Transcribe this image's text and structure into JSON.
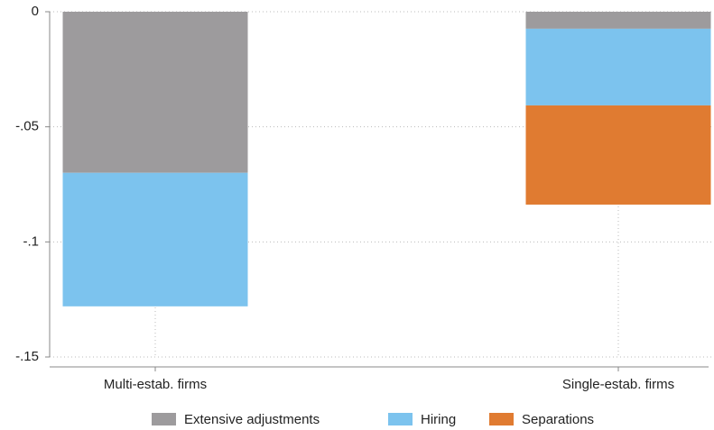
{
  "chart_data": {
    "type": "stacked_bar",
    "categories": [
      "Multi-estab. firms",
      "Single-estab. firms"
    ],
    "series": [
      {
        "name": "Extensive adjustments",
        "color": "#9d9b9d",
        "values": [
          -0.07,
          -0.0074
        ]
      },
      {
        "name": "Hiring",
        "color": "#7cc3ee",
        "values": [
          -0.058,
          -0.0333
        ]
      },
      {
        "name": "Separations",
        "color": "#e07b31",
        "values": [
          0,
          -0.0431
        ]
      }
    ],
    "ylim": [
      -0.15,
      0
    ],
    "yticks": [
      0,
      {
        "value": -0.05,
        "label": "-.05"
      },
      {
        "value": -0.1,
        "label": "-.1"
      },
      {
        "value": -0.15,
        "label": "-.15"
      }
    ],
    "grid": true
  }
}
